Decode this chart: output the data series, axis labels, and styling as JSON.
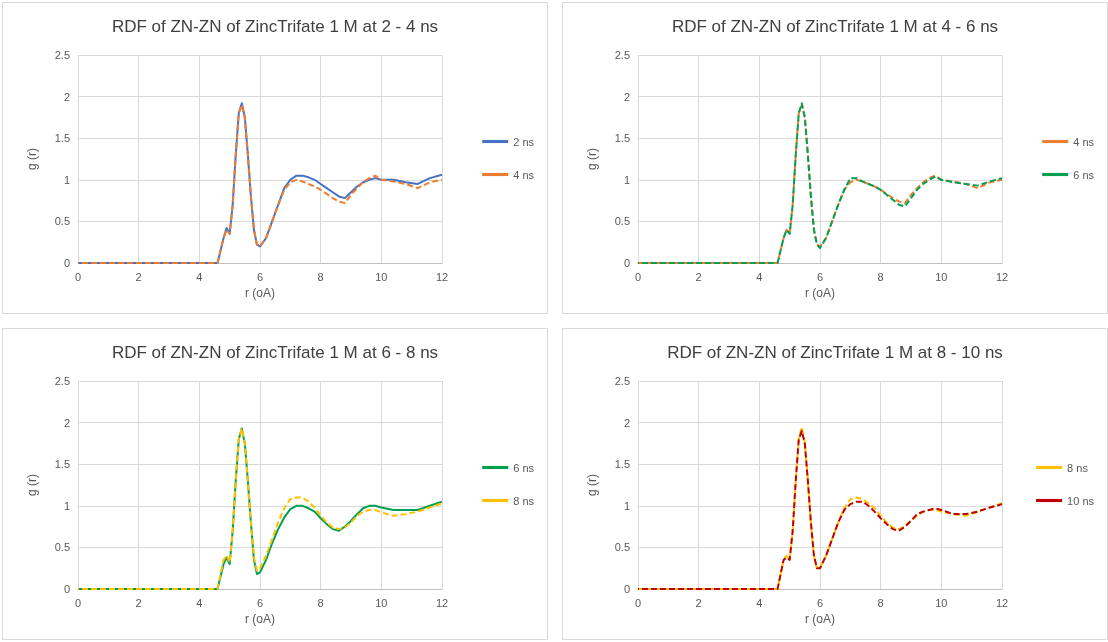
{
  "chart_data": [
    {
      "type": "line",
      "title": "RDF of ZN-ZN of ZincTrifate 1 M at 2 - 4 ns",
      "xlabel": "r (oA)",
      "ylabel": "g (r)",
      "xlim": [
        0,
        12
      ],
      "xticks": [
        0,
        2,
        4,
        6,
        8,
        10,
        12
      ],
      "ylim": [
        0,
        2.5
      ],
      "yticks": [
        0,
        0.5,
        1,
        1.5,
        2,
        2.5
      ],
      "grid": true,
      "legend": "right",
      "marker": "none",
      "x": [
        0,
        4.6,
        4.8,
        4.9,
        5.0,
        5.1,
        5.2,
        5.3,
        5.4,
        5.5,
        5.6,
        5.7,
        5.8,
        5.9,
        6.0,
        6.2,
        6.4,
        6.6,
        6.8,
        7.0,
        7.2,
        7.4,
        7.6,
        7.8,
        8.0,
        8.2,
        8.4,
        8.6,
        8.8,
        9.0,
        9.2,
        9.4,
        9.6,
        9.8,
        10.0,
        10.4,
        10.8,
        11.2,
        11.6,
        12.0
      ],
      "series": [
        {
          "name": "2 ns",
          "color": "#4472c4",
          "line_style": "solid",
          "values": [
            0,
            0,
            0.3,
            0.42,
            0.35,
            0.7,
            1.3,
            1.8,
            1.92,
            1.75,
            1.3,
            0.8,
            0.4,
            0.22,
            0.2,
            0.3,
            0.5,
            0.7,
            0.9,
            1.0,
            1.05,
            1.05,
            1.03,
            1.0,
            0.95,
            0.9,
            0.85,
            0.8,
            0.78,
            0.85,
            0.92,
            0.97,
            1.0,
            1.02,
            1.0,
            1.0,
            0.97,
            0.95,
            1.02,
            1.06
          ]
        },
        {
          "name": "4 ns",
          "color": "#ed7d31",
          "line_style": "dashed",
          "values": [
            0,
            0,
            0.3,
            0.4,
            0.35,
            0.7,
            1.3,
            1.8,
            1.9,
            1.75,
            1.3,
            0.8,
            0.4,
            0.22,
            0.2,
            0.3,
            0.5,
            0.7,
            0.88,
            0.97,
            1.0,
            0.98,
            0.95,
            0.92,
            0.88,
            0.83,
            0.78,
            0.74,
            0.72,
            0.82,
            0.9,
            0.97,
            1.02,
            1.05,
            1.0,
            0.98,
            0.95,
            0.9,
            0.97,
            1.0
          ]
        }
      ]
    },
    {
      "type": "line",
      "title": "RDF of ZN-ZN of ZincTrifate 1 M at 4 - 6 ns",
      "xlabel": "r (oA)",
      "ylabel": "g (r)",
      "xlim": [
        0,
        12
      ],
      "xticks": [
        0,
        2,
        4,
        6,
        8,
        10,
        12
      ],
      "ylim": [
        0,
        2.5
      ],
      "yticks": [
        0,
        0.5,
        1,
        1.5,
        2,
        2.5
      ],
      "grid": true,
      "legend": "right",
      "marker": "none",
      "x": [
        0,
        4.6,
        4.8,
        4.9,
        5.0,
        5.1,
        5.2,
        5.3,
        5.4,
        5.5,
        5.6,
        5.7,
        5.8,
        5.9,
        6.0,
        6.2,
        6.4,
        6.6,
        6.8,
        7.0,
        7.2,
        7.4,
        7.6,
        7.8,
        8.0,
        8.2,
        8.4,
        8.6,
        8.8,
        9.0,
        9.2,
        9.4,
        9.6,
        9.8,
        10.0,
        10.4,
        10.8,
        11.2,
        11.6,
        12.0
      ],
      "series": [
        {
          "name": "4 ns",
          "color": "#ed7d31",
          "line_style": "dashed",
          "values": [
            0,
            0,
            0.3,
            0.4,
            0.35,
            0.7,
            1.3,
            1.8,
            1.9,
            1.75,
            1.3,
            0.8,
            0.4,
            0.22,
            0.2,
            0.3,
            0.5,
            0.7,
            0.88,
            0.97,
            1.0,
            0.98,
            0.95,
            0.92,
            0.88,
            0.83,
            0.78,
            0.74,
            0.72,
            0.82,
            0.9,
            0.97,
            1.02,
            1.05,
            1.0,
            0.98,
            0.95,
            0.9,
            0.97,
            1.0
          ]
        },
        {
          "name": "6 ns",
          "color": "#00a050",
          "line_style": "dashed",
          "values": [
            0,
            0,
            0.3,
            0.4,
            0.35,
            0.7,
            1.3,
            1.8,
            1.92,
            1.75,
            1.3,
            0.8,
            0.4,
            0.22,
            0.18,
            0.3,
            0.5,
            0.7,
            0.88,
            1.02,
            1.02,
            0.98,
            0.95,
            0.92,
            0.88,
            0.82,
            0.76,
            0.7,
            0.68,
            0.78,
            0.88,
            0.95,
            1.0,
            1.04,
            1.0,
            0.97,
            0.95,
            0.93,
            0.98,
            1.02
          ]
        }
      ]
    },
    {
      "type": "line",
      "title": "RDF of ZN-ZN of ZincTrifate 1 M at 6 - 8 ns",
      "xlabel": "r (oA)",
      "ylabel": "g (r)",
      "xlim": [
        0,
        12
      ],
      "xticks": [
        0,
        2,
        4,
        6,
        8,
        10,
        12
      ],
      "ylim": [
        0,
        2.5
      ],
      "yticks": [
        0,
        0.5,
        1,
        1.5,
        2,
        2.5
      ],
      "grid": true,
      "legend": "right",
      "marker": "none",
      "x": [
        0,
        4.6,
        4.8,
        4.9,
        5.0,
        5.1,
        5.2,
        5.3,
        5.4,
        5.5,
        5.6,
        5.7,
        5.8,
        5.9,
        6.0,
        6.2,
        6.4,
        6.6,
        6.8,
        7.0,
        7.2,
        7.4,
        7.6,
        7.8,
        8.0,
        8.2,
        8.4,
        8.6,
        8.8,
        9.0,
        9.2,
        9.4,
        9.6,
        9.8,
        10.0,
        10.4,
        10.8,
        11.2,
        11.6,
        12.0
      ],
      "series": [
        {
          "name": "6 ns",
          "color": "#00a050",
          "line_style": "solid",
          "values": [
            0,
            0,
            0.3,
            0.38,
            0.3,
            0.7,
            1.3,
            1.8,
            1.93,
            1.75,
            1.3,
            0.8,
            0.35,
            0.18,
            0.2,
            0.35,
            0.55,
            0.72,
            0.86,
            0.96,
            1.0,
            1.0,
            0.97,
            0.93,
            0.85,
            0.78,
            0.72,
            0.7,
            0.75,
            0.82,
            0.9,
            0.97,
            1.0,
            1.0,
            0.98,
            0.95,
            0.95,
            0.95,
            1.0,
            1.05
          ]
        },
        {
          "name": "8 ns",
          "color": "#ffc000",
          "line_style": "dashed",
          "values": [
            0,
            0,
            0.35,
            0.4,
            0.32,
            0.7,
            1.3,
            1.8,
            1.93,
            1.75,
            1.3,
            0.8,
            0.38,
            0.22,
            0.25,
            0.4,
            0.6,
            0.8,
            0.97,
            1.08,
            1.1,
            1.1,
            1.05,
            0.98,
            0.88,
            0.8,
            0.74,
            0.72,
            0.74,
            0.8,
            0.88,
            0.93,
            0.95,
            0.95,
            0.92,
            0.88,
            0.9,
            0.93,
            0.98,
            1.03
          ]
        }
      ]
    },
    {
      "type": "line",
      "title": "RDF of ZN-ZN of ZincTrifate 1 M at 8 - 10 ns",
      "xlabel": "r (oA)",
      "ylabel": "g (r)",
      "xlim": [
        0,
        12
      ],
      "xticks": [
        0,
        2,
        4,
        6,
        8,
        10,
        12
      ],
      "ylim": [
        0,
        2.5
      ],
      "yticks": [
        0,
        0.5,
        1,
        1.5,
        2,
        2.5
      ],
      "grid": true,
      "legend": "right",
      "marker": "none",
      "x": [
        0,
        4.6,
        4.8,
        4.9,
        5.0,
        5.1,
        5.2,
        5.3,
        5.4,
        5.5,
        5.6,
        5.7,
        5.8,
        5.9,
        6.0,
        6.2,
        6.4,
        6.6,
        6.8,
        7.0,
        7.2,
        7.4,
        7.6,
        7.8,
        8.0,
        8.2,
        8.4,
        8.6,
        8.8,
        9.0,
        9.2,
        9.4,
        9.6,
        9.8,
        10.0,
        10.4,
        10.8,
        11.2,
        11.6,
        12.0
      ],
      "series": [
        {
          "name": "8 ns",
          "color": "#ffc000",
          "line_style": "dashed",
          "values": [
            0,
            0,
            0.35,
            0.4,
            0.35,
            0.7,
            1.3,
            1.8,
            1.95,
            1.75,
            1.3,
            0.8,
            0.4,
            0.25,
            0.25,
            0.4,
            0.6,
            0.8,
            0.97,
            1.08,
            1.1,
            1.08,
            1.03,
            0.97,
            0.88,
            0.8,
            0.74,
            0.72,
            0.75,
            0.82,
            0.88,
            0.93,
            0.95,
            0.95,
            0.93,
            0.9,
            0.88,
            0.93,
            0.98,
            1.03
          ]
        },
        {
          "name": "10 ns",
          "color": "#c00000",
          "line_style": "dashed",
          "values": [
            0,
            0,
            0.35,
            0.38,
            0.35,
            0.7,
            1.3,
            1.8,
            1.9,
            1.75,
            1.3,
            0.8,
            0.4,
            0.25,
            0.25,
            0.4,
            0.6,
            0.8,
            0.95,
            1.02,
            1.05,
            1.05,
            1.0,
            0.93,
            0.85,
            0.78,
            0.72,
            0.7,
            0.75,
            0.82,
            0.9,
            0.93,
            0.95,
            0.97,
            0.95,
            0.9,
            0.9,
            0.93,
            0.98,
            1.02
          ]
        }
      ]
    }
  ]
}
